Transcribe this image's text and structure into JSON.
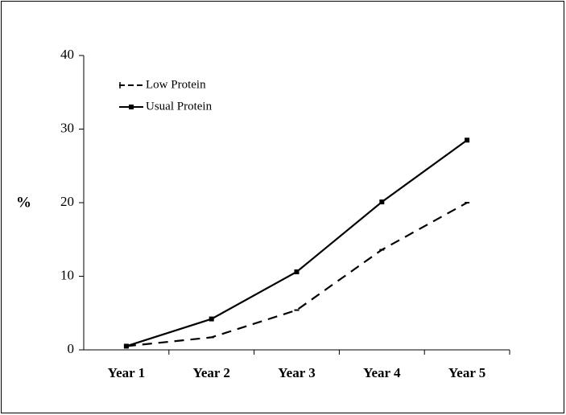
{
  "chart_data": {
    "type": "line",
    "categories": [
      "Year 1",
      "Year 2",
      "Year 3",
      "Year 4",
      "Year 5"
    ],
    "y_label": "%",
    "series": [
      {
        "name": "Low Protein",
        "color": "#000000",
        "line_style": "dashed",
        "marker": "dash",
        "values": [
          0.5,
          1.7,
          5.4,
          13.6,
          20
        ]
      },
      {
        "name": "Usual Protein",
        "color": "#000000",
        "line_style": "solid",
        "marker": "square",
        "values": [
          0.5,
          4.2,
          10.6,
          20.1,
          28.5
        ]
      }
    ],
    "ylim": [
      0,
      40
    ],
    "yticks": [
      0,
      10,
      20,
      30,
      40
    ],
    "grid": false
  }
}
